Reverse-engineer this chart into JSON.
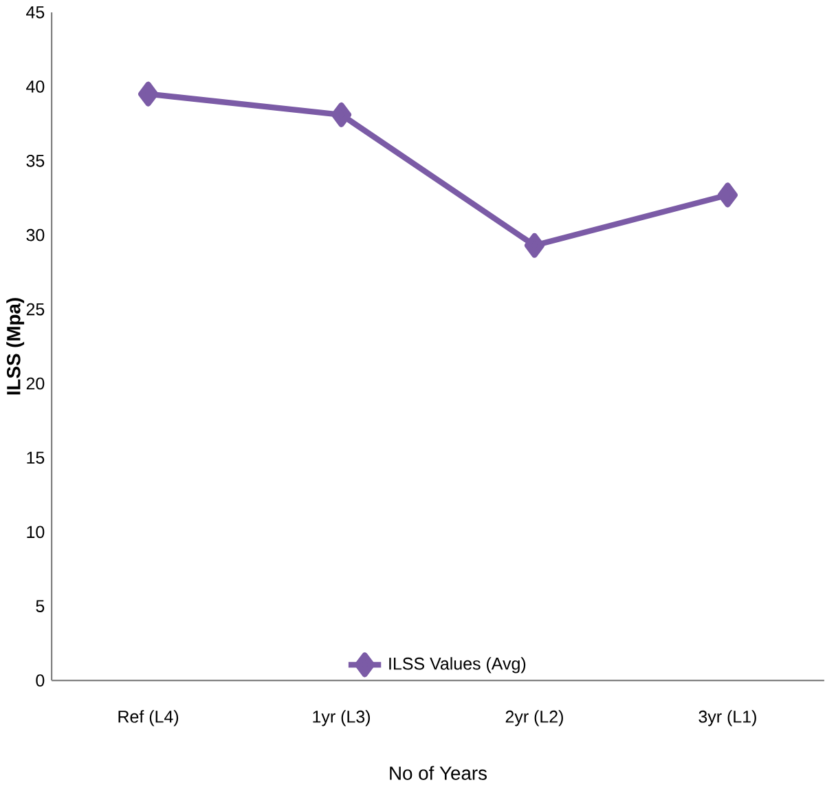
{
  "chart_data": {
    "type": "line",
    "xlabel": "No of Years",
    "ylabel": "ILSS (Mpa)",
    "categories": [
      "Ref (L4)",
      "1yr (L3)",
      "2yr (L2)",
      "3yr (L1)"
    ],
    "series": [
      {
        "name": "ILSS Values (Avg)",
        "color": "#7b5ba6",
        "values": [
          39.5,
          38.1,
          29.3,
          32.7
        ]
      }
    ],
    "ylim": [
      0,
      45
    ],
    "yticks": [
      0,
      5,
      10,
      15,
      20,
      25,
      30,
      35,
      40,
      45
    ],
    "marker": "diamond",
    "legend": "bottom",
    "grid": false
  }
}
